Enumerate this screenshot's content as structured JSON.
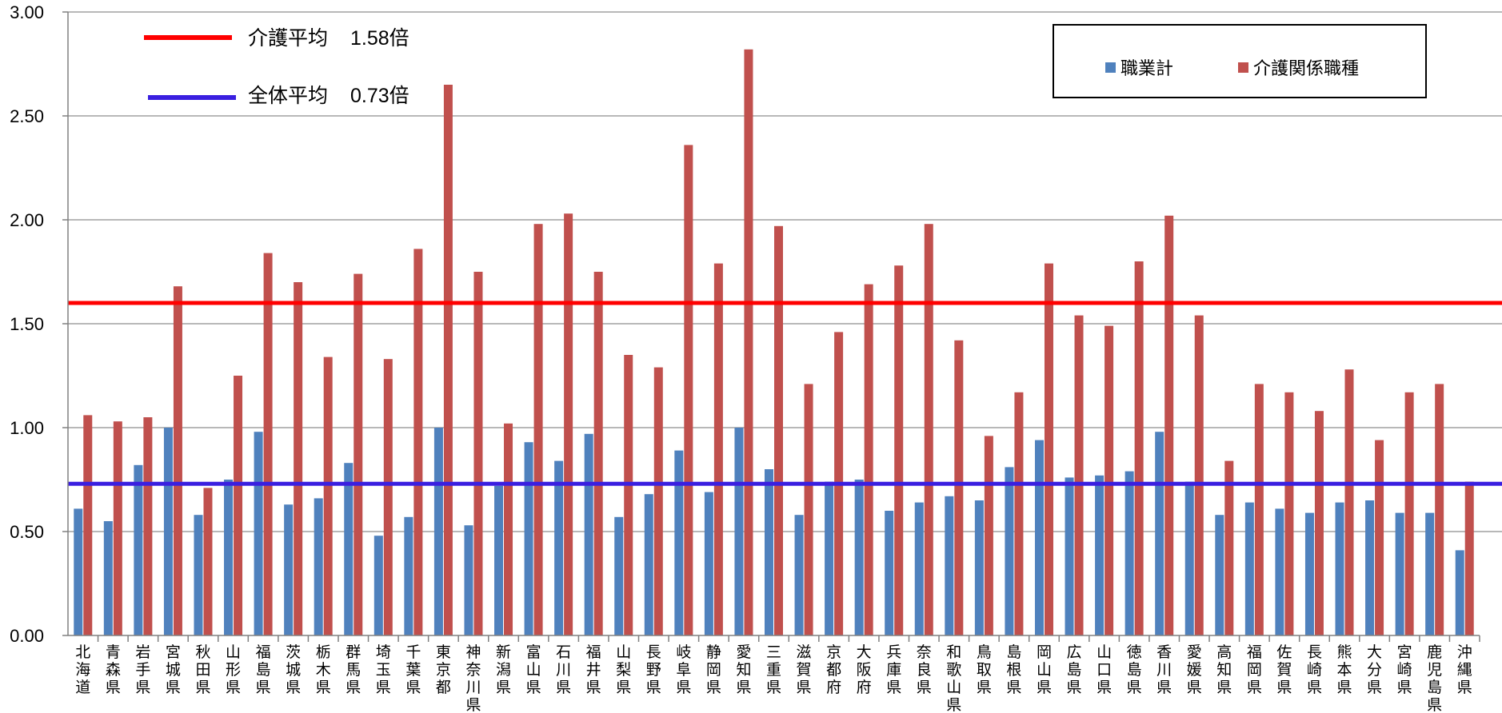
{
  "chart_data": {
    "type": "bar",
    "title": "",
    "xlabel": "",
    "ylabel": "",
    "ylim": [
      0,
      3.0
    ],
    "yticks": [
      "0.00",
      "0.50",
      "1.00",
      "1.50",
      "2.00",
      "2.50",
      "3.00"
    ],
    "grid": true,
    "legend_placement": "top-right",
    "categories": [
      "北海道",
      "青森県",
      "岩手県",
      "宮城県",
      "秋田県",
      "山形県",
      "福島県",
      "茨城県",
      "栃木県",
      "群馬県",
      "埼玉県",
      "千葉県",
      "東京都",
      "神奈川県",
      "新潟県",
      "富山県",
      "石川県",
      "福井県",
      "山梨県",
      "長野県",
      "岐阜県",
      "静岡県",
      "愛知県",
      "三重県",
      "滋賀県",
      "京都府",
      "大阪府",
      "兵庫県",
      "奈良県",
      "和歌山県",
      "鳥取県",
      "島根県",
      "岡山県",
      "広島県",
      "山口県",
      "徳島県",
      "香川県",
      "愛媛県",
      "高知県",
      "福岡県",
      "佐賀県",
      "長崎県",
      "熊本県",
      "大分県",
      "宮崎県",
      "鹿児島県",
      "沖縄県"
    ],
    "series": [
      {
        "name": "職業計",
        "color": "#4F81BD",
        "values": [
          0.61,
          0.55,
          0.82,
          1.0,
          0.58,
          0.75,
          0.98,
          0.63,
          0.66,
          0.83,
          0.48,
          0.57,
          1.0,
          0.53,
          0.72,
          0.93,
          0.84,
          0.97,
          0.57,
          0.68,
          0.89,
          0.69,
          1.0,
          0.8,
          0.58,
          0.74,
          0.75,
          0.6,
          0.64,
          0.67,
          0.65,
          0.81,
          0.94,
          0.76,
          0.77,
          0.79,
          0.98,
          0.74,
          0.58,
          0.64,
          0.61,
          0.59,
          0.64,
          0.65,
          0.59,
          0.59,
          0.41
        ]
      },
      {
        "name": "介護関係職種",
        "color": "#C0504D",
        "values": [
          1.06,
          1.03,
          1.05,
          1.68,
          0.71,
          1.25,
          1.84,
          1.7,
          1.34,
          1.74,
          1.33,
          1.86,
          2.65,
          1.75,
          1.02,
          1.98,
          2.03,
          1.75,
          1.35,
          1.29,
          2.36,
          1.79,
          2.82,
          1.97,
          1.21,
          1.46,
          1.69,
          1.78,
          1.98,
          1.42,
          0.96,
          1.17,
          1.79,
          1.54,
          1.49,
          1.8,
          2.02,
          1.54,
          0.84,
          1.21,
          1.17,
          1.08,
          1.28,
          0.94,
          1.17,
          1.21,
          0.74
        ]
      }
    ],
    "reference_lines": [
      {
        "name": "介護平均",
        "value_label": "1.58倍",
        "value": 1.6,
        "color": "#FF0000"
      },
      {
        "name": "全体平均",
        "value_label": "0.73倍",
        "value": 0.73,
        "color": "#3A1FE0"
      }
    ]
  },
  "colors": {
    "grid": "#A0A0A0",
    "axis": "#808080"
  }
}
